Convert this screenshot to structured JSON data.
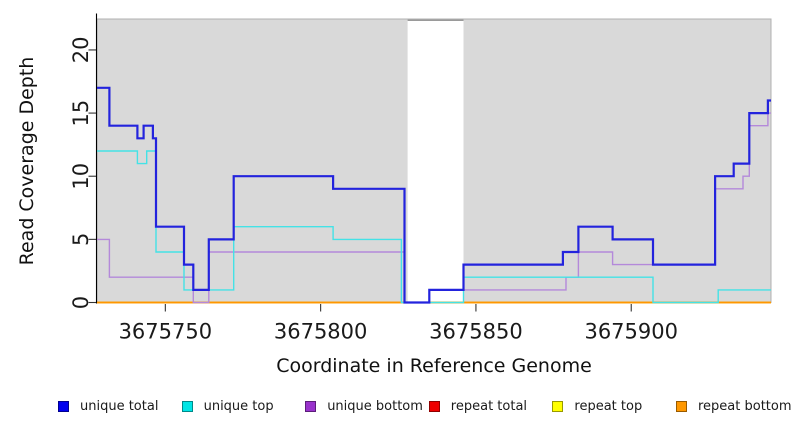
{
  "chart_data": {
    "type": "line",
    "subtype": "step",
    "title": "",
    "xlabel": "Coordinate in Reference Genome",
    "ylabel": "Read Coverage Depth",
    "xlim": [
      3675728,
      3675945
    ],
    "ylim": [
      0,
      22.45
    ],
    "xticks": [
      3675750,
      3675800,
      3675850,
      3675900
    ],
    "yticks": [
      0,
      5,
      10,
      15,
      20
    ],
    "grid": false,
    "panel_background": "#d9d9d9",
    "masked_region": {
      "from": 3675828,
      "to": 3675846,
      "color": "#ffffff"
    },
    "legend_position": "bottom",
    "draw_order": [
      "repeat total",
      "repeat top",
      "repeat bottom",
      "unique bottom",
      "unique top",
      "unique total"
    ],
    "series": [
      {
        "name": "unique total",
        "color": "#2323dd",
        "legend_color": "#0000ee",
        "line_width": 2.2,
        "points": [
          [
            3675728,
            17
          ],
          [
            3675732,
            14
          ],
          [
            3675741,
            13
          ],
          [
            3675743,
            14
          ],
          [
            3675746,
            13
          ],
          [
            3675747,
            6
          ],
          [
            3675756,
            3
          ],
          [
            3675759,
            1
          ],
          [
            3675764,
            5
          ],
          [
            3675772,
            10
          ],
          [
            3675804,
            9
          ],
          [
            3675827,
            0
          ],
          [
            3675835,
            1
          ],
          [
            3675846,
            3
          ],
          [
            3675878,
            4
          ],
          [
            3675883,
            6
          ],
          [
            3675894,
            5
          ],
          [
            3675907,
            3
          ],
          [
            3675927,
            10
          ],
          [
            3675933,
            11
          ],
          [
            3675938,
            15
          ],
          [
            3675944,
            16
          ],
          [
            3675945,
            16
          ]
        ]
      },
      {
        "name": "unique top",
        "color": "#44e2e6",
        "legend_color": "#00e5e5",
        "line_width": 1.4,
        "points": [
          [
            3675728,
            12
          ],
          [
            3675741,
            11
          ],
          [
            3675744,
            12
          ],
          [
            3675747,
            4
          ],
          [
            3675756,
            1
          ],
          [
            3675772,
            6
          ],
          [
            3675804,
            5
          ],
          [
            3675826,
            0
          ],
          [
            3675846,
            2
          ],
          [
            3675907,
            0
          ],
          [
            3675928,
            1
          ],
          [
            3675945,
            1
          ]
        ]
      },
      {
        "name": "unique bottom",
        "color": "#b489da",
        "legend_color": "#9932cc",
        "line_width": 1.4,
        "points": [
          [
            3675728,
            5
          ],
          [
            3675732,
            2
          ],
          [
            3675759,
            0
          ],
          [
            3675764,
            4
          ],
          [
            3675827,
            0
          ],
          [
            3675835,
            1
          ],
          [
            3675879,
            2
          ],
          [
            3675883,
            4
          ],
          [
            3675894,
            3
          ],
          [
            3675927,
            9
          ],
          [
            3675936,
            10
          ],
          [
            3675938,
            14
          ],
          [
            3675944,
            15
          ],
          [
            3675945,
            15
          ]
        ]
      },
      {
        "name": "repeat total",
        "color": "#e00000",
        "legend_color": "#ee0000",
        "line_width": 1.4,
        "points": [
          [
            3675728,
            0
          ],
          [
            3675945,
            0
          ]
        ]
      },
      {
        "name": "repeat top",
        "color": "#ffff00",
        "legend_color": "#ffff00",
        "line_width": 1.4,
        "points": [
          [
            3675728,
            0
          ],
          [
            3675945,
            0
          ]
        ]
      },
      {
        "name": "repeat bottom",
        "color": "#ff9700",
        "legend_color": "#ff9800",
        "line_width": 1.8,
        "points": [
          [
            3675728,
            0
          ],
          [
            3675945,
            0
          ]
        ]
      }
    ]
  }
}
